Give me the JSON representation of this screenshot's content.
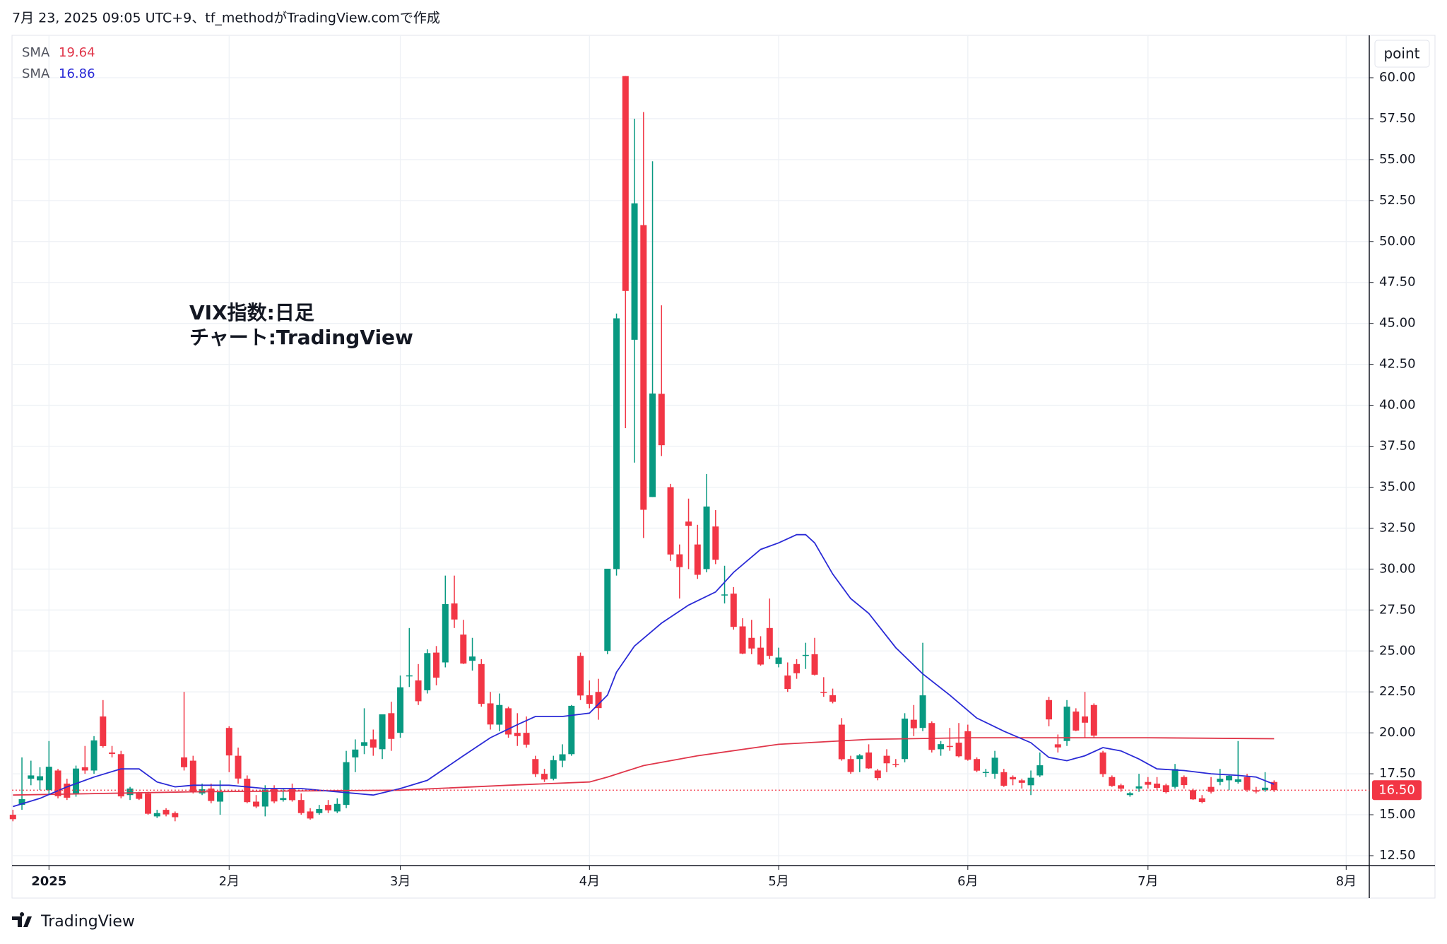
{
  "header": "7月 23, 2025 09:05 UTC+9、tf_methodがTradingView.comで作成",
  "unit_button": "point",
  "footer": "TradingView",
  "chart_data": {
    "type": "candlestick",
    "annotations": [
      "VIX指数:日足",
      "チャート:TradingView"
    ],
    "up_color": "#089981",
    "down_color": "#f23645",
    "ylim": [
      12.5,
      60
    ],
    "yticks": [
      {
        "value": 12.5,
        "label": "12.50"
      },
      {
        "value": 15,
        "label": "15.00"
      },
      {
        "value": 17.5,
        "label": "17.50"
      },
      {
        "value": 20,
        "label": "20.00"
      },
      {
        "value": 22.5,
        "label": "22.50"
      },
      {
        "value": 25,
        "label": "25.00"
      },
      {
        "value": 27.5,
        "label": "27.50"
      },
      {
        "value": 30,
        "label": "30.00"
      },
      {
        "value": 32.5,
        "label": "32.50"
      },
      {
        "value": 35,
        "label": "35.00"
      },
      {
        "value": 37.5,
        "label": "37.50"
      },
      {
        "value": 40,
        "label": "40.00"
      },
      {
        "value": 42.5,
        "label": "42.50"
      },
      {
        "value": 45,
        "label": "45.00"
      },
      {
        "value": 47.5,
        "label": "47.50"
      },
      {
        "value": 50,
        "label": "50.00"
      },
      {
        "value": 52.5,
        "label": "52.50"
      },
      {
        "value": 55,
        "label": "55.00"
      },
      {
        "value": 57.5,
        "label": "57.50"
      },
      {
        "value": 60,
        "label": "60.00"
      }
    ],
    "xticks": [
      {
        "value": 4,
        "label": "2025"
      },
      {
        "value": 24,
        "label": "2月"
      },
      {
        "value": 43,
        "label": "3月"
      },
      {
        "value": 64,
        "label": "4月"
      },
      {
        "value": 85,
        "label": "5月"
      },
      {
        "value": 106,
        "label": "6月"
      },
      {
        "value": 126,
        "label": "7月"
      },
      {
        "value": 148,
        "label": "8月"
      }
    ],
    "grid": true,
    "last_price": {
      "value": 16.5,
      "label": "16.50",
      "color": "#f23645"
    },
    "candles": [
      [
        15.0,
        15.3,
        14.6,
        14.73
      ],
      [
        15.6,
        18.5,
        15.3,
        15.95
      ],
      [
        17.2,
        18.3,
        16.8,
        17.4
      ],
      [
        17.1,
        17.9,
        16.5,
        17.35
      ],
      [
        16.5,
        19.5,
        16.2,
        17.93
      ],
      [
        17.7,
        17.8,
        16.0,
        16.13
      ],
      [
        16.9,
        17.2,
        15.9,
        16.04
      ],
      [
        16.3,
        18.0,
        16.1,
        17.82
      ],
      [
        17.9,
        19.2,
        17.5,
        17.7
      ],
      [
        17.7,
        19.8,
        17.5,
        19.54
      ],
      [
        21.0,
        22.0,
        19.1,
        19.19
      ],
      [
        18.8,
        19.2,
        18.5,
        18.71
      ],
      [
        18.7,
        18.9,
        16.0,
        16.12
      ],
      [
        16.2,
        16.7,
        15.9,
        16.6
      ],
      [
        16.3,
        16.4,
        15.9,
        15.97
      ],
      [
        16.3,
        16.4,
        15.0,
        15.06
      ],
      [
        14.9,
        15.3,
        14.8,
        15.1
      ],
      [
        15.3,
        15.4,
        14.9,
        15.02
      ],
      [
        15.1,
        15.2,
        14.6,
        14.85
      ],
      [
        18.5,
        22.5,
        17.7,
        17.9
      ],
      [
        18.3,
        18.6,
        16.3,
        16.41
      ],
      [
        16.3,
        16.9,
        16.2,
        16.56
      ],
      [
        16.6,
        16.9,
        15.7,
        15.84
      ],
      [
        15.8,
        17.1,
        15.0,
        16.43
      ],
      [
        20.3,
        20.4,
        17.6,
        18.62
      ],
      [
        18.6,
        19.1,
        16.9,
        17.21
      ],
      [
        17.2,
        17.4,
        15.7,
        15.77
      ],
      [
        15.8,
        16.2,
        15.4,
        15.5
      ],
      [
        15.5,
        16.8,
        14.9,
        16.54
      ],
      [
        16.6,
        16.8,
        15.7,
        15.81
      ],
      [
        15.9,
        16.6,
        15.8,
        16.02
      ],
      [
        16.6,
        16.9,
        15.8,
        15.89
      ],
      [
        15.9,
        16.3,
        15.0,
        15.1
      ],
      [
        15.2,
        15.4,
        14.7,
        14.77
      ],
      [
        15.1,
        15.6,
        15.0,
        15.35
      ],
      [
        15.6,
        15.9,
        15.1,
        15.27
      ],
      [
        15.2,
        16.0,
        15.1,
        15.66
      ],
      [
        15.6,
        18.9,
        15.4,
        18.21
      ],
      [
        18.5,
        19.6,
        17.6,
        18.98
      ],
      [
        19.2,
        21.5,
        18.7,
        19.43
      ],
      [
        19.6,
        20.2,
        18.6,
        19.1
      ],
      [
        19.0,
        21.1,
        18.4,
        21.13
      ],
      [
        21.2,
        21.9,
        18.9,
        19.63
      ],
      [
        20.0,
        23.5,
        19.7,
        22.78
      ],
      [
        23.5,
        26.4,
        22.8,
        23.51
      ],
      [
        23.2,
        24.2,
        21.7,
        21.93
      ],
      [
        22.6,
        25.1,
        22.4,
        24.87
      ],
      [
        24.9,
        25.3,
        22.9,
        23.37
      ],
      [
        24.3,
        29.6,
        24.0,
        27.86
      ],
      [
        27.9,
        29.6,
        26.4,
        26.92
      ],
      [
        26.0,
        26.9,
        24.2,
        24.23
      ],
      [
        24.4,
        25.8,
        23.8,
        24.66
      ],
      [
        24.2,
        24.5,
        21.6,
        21.77
      ],
      [
        21.8,
        22.5,
        20.2,
        20.51
      ],
      [
        20.5,
        22.4,
        20.1,
        21.7
      ],
      [
        21.5,
        21.6,
        19.7,
        19.9
      ],
      [
        20.0,
        21.2,
        19.2,
        19.8
      ],
      [
        20.0,
        21.0,
        19.1,
        19.28
      ],
      [
        18.4,
        18.6,
        17.3,
        17.48
      ],
      [
        17.5,
        17.8,
        17.0,
        17.15
      ],
      [
        17.2,
        18.6,
        17.1,
        18.33
      ],
      [
        18.3,
        19.3,
        17.9,
        18.69
      ],
      [
        18.7,
        21.7,
        18.6,
        21.65
      ],
      [
        24.7,
        24.9,
        22.0,
        22.28
      ],
      [
        22.3,
        23.2,
        21.5,
        21.77
      ],
      [
        22.5,
        23.3,
        20.8,
        21.51
      ],
      [
        25.0,
        30.0,
        24.8,
        30.02
      ],
      [
        30.0,
        45.6,
        29.6,
        45.31
      ],
      [
        60.1,
        60.1,
        38.6,
        46.98
      ],
      [
        44.0,
        57.5,
        36.5,
        52.33
      ],
      [
        51.0,
        57.9,
        31.9,
        33.62
      ],
      [
        34.4,
        54.9,
        34.4,
        40.72
      ],
      [
        40.7,
        46.1,
        36.9,
        37.56
      ],
      [
        35.0,
        35.2,
        30.5,
        30.89
      ],
      [
        30.9,
        31.5,
        28.2,
        30.12
      ],
      [
        32.9,
        34.3,
        30.0,
        32.64
      ],
      [
        31.5,
        32.7,
        29.4,
        29.65
      ],
      [
        30.0,
        35.8,
        29.8,
        33.82
      ],
      [
        32.6,
        33.6,
        30.3,
        30.57
      ],
      [
        28.4,
        30.2,
        27.9,
        28.45
      ],
      [
        28.5,
        28.9,
        26.3,
        26.47
      ],
      [
        26.5,
        27.0,
        24.8,
        24.84
      ],
      [
        25.8,
        26.9,
        24.8,
        25.15
      ],
      [
        25.2,
        25.9,
        24.1,
        24.17
      ],
      [
        26.4,
        28.2,
        24.5,
        24.7
      ],
      [
        24.2,
        25.2,
        24.0,
        24.6
      ],
      [
        23.5,
        24.3,
        22.5,
        22.68
      ],
      [
        24.2,
        24.5,
        23.3,
        23.64
      ],
      [
        24.7,
        25.5,
        23.9,
        24.76
      ],
      [
        24.8,
        25.8,
        23.5,
        23.55
      ],
      [
        22.5,
        23.4,
        22.2,
        22.48
      ],
      [
        22.3,
        22.7,
        21.8,
        21.9
      ],
      [
        20.5,
        20.9,
        18.3,
        18.39
      ],
      [
        18.4,
        18.6,
        17.5,
        17.61
      ],
      [
        18.4,
        18.7,
        17.6,
        18.62
      ],
      [
        18.8,
        19.3,
        17.8,
        17.83
      ],
      [
        17.7,
        17.8,
        17.1,
        17.24
      ],
      [
        18.6,
        19.0,
        17.6,
        18.14
      ],
      [
        18.1,
        18.4,
        17.9,
        18.09
      ],
      [
        18.4,
        21.2,
        18.2,
        20.87
      ],
      [
        20.8,
        21.7,
        19.8,
        20.28
      ],
      [
        20.3,
        25.5,
        20.1,
        22.29
      ],
      [
        20.6,
        20.7,
        18.8,
        18.96
      ],
      [
        19.0,
        19.5,
        18.6,
        19.31
      ],
      [
        19.2,
        20.3,
        18.9,
        19.18
      ],
      [
        19.4,
        20.6,
        18.5,
        18.57
      ],
      [
        20.1,
        20.5,
        18.3,
        18.36
      ],
      [
        18.4,
        18.5,
        17.6,
        17.69
      ],
      [
        17.6,
        17.8,
        17.3,
        17.61
      ],
      [
        17.5,
        18.9,
        17.2,
        18.48
      ],
      [
        17.6,
        17.8,
        16.7,
        16.77
      ],
      [
        17.3,
        17.4,
        16.8,
        17.16
      ],
      [
        17.1,
        17.2,
        16.6,
        16.95
      ],
      [
        16.8,
        17.7,
        16.2,
        17.26
      ],
      [
        17.4,
        18.8,
        17.3,
        18.02
      ],
      [
        22.0,
        22.2,
        20.4,
        20.82
      ],
      [
        19.3,
        19.9,
        18.8,
        19.11
      ],
      [
        19.5,
        22.0,
        19.2,
        21.6
      ],
      [
        21.3,
        21.5,
        20.1,
        20.14
      ],
      [
        21.0,
        22.5,
        19.7,
        20.62
      ],
      [
        21.7,
        21.8,
        19.7,
        19.83
      ],
      [
        18.8,
        18.9,
        17.3,
        17.48
      ],
      [
        17.3,
        17.4,
        16.7,
        16.76
      ],
      [
        16.8,
        16.9,
        16.4,
        16.59
      ],
      [
        16.2,
        16.4,
        16.1,
        16.32
      ],
      [
        16.6,
        17.5,
        16.4,
        16.73
      ],
      [
        17.0,
        17.3,
        16.6,
        16.83
      ],
      [
        16.9,
        17.3,
        16.5,
        16.64
      ],
      [
        16.8,
        16.9,
        16.3,
        16.38
      ],
      [
        16.7,
        18.1,
        16.6,
        17.79
      ],
      [
        17.3,
        17.4,
        16.6,
        16.81
      ],
      [
        16.5,
        16.6,
        15.9,
        15.94
      ],
      [
        16.0,
        16.2,
        15.7,
        15.78
      ],
      [
        16.7,
        17.3,
        16.3,
        16.4
      ],
      [
        17.0,
        17.8,
        16.8,
        17.2
      ],
      [
        17.1,
        17.4,
        16.5,
        17.38
      ],
      [
        17.0,
        19.5,
        16.9,
        17.16
      ],
      [
        17.3,
        17.5,
        16.4,
        16.52
      ],
      [
        16.5,
        16.7,
        16.3,
        16.41
      ],
      [
        16.5,
        17.6,
        16.4,
        16.65
      ],
      [
        17.0,
        17.1,
        16.4,
        16.5
      ]
    ],
    "series": [
      {
        "name": "SMA",
        "color": "#e0364a",
        "last_value": 19.64,
        "x": [
          0,
          20,
          43,
          55,
          64,
          66,
          70,
          76,
          85,
          95,
          106,
          115,
          126,
          140
        ],
        "values": [
          16.2,
          16.4,
          16.5,
          16.8,
          17.0,
          17.3,
          18.0,
          18.6,
          19.3,
          19.6,
          19.7,
          19.7,
          19.7,
          19.64
        ]
      },
      {
        "name": "SMA",
        "color": "#2a2ad6",
        "last_value": 16.86,
        "x": [
          0,
          3,
          6,
          9,
          12,
          14,
          16,
          18,
          20,
          24,
          28,
          32,
          36,
          40,
          43,
          46,
          50,
          53,
          56,
          58,
          61,
          64,
          66,
          67,
          69,
          72,
          75,
          78,
          80,
          83,
          85,
          87,
          88,
          89,
          91,
          93,
          95,
          98,
          101,
          104,
          107,
          110,
          113,
          115,
          117,
          119,
          121,
          123,
          125,
          127,
          130,
          133,
          136,
          138,
          140
        ],
        "values": [
          15.5,
          16.0,
          16.7,
          17.3,
          17.8,
          17.8,
          17.0,
          16.7,
          16.8,
          16.8,
          16.6,
          16.6,
          16.4,
          16.2,
          16.6,
          17.1,
          18.6,
          19.7,
          20.5,
          21.0,
          21.0,
          21.2,
          22.3,
          23.7,
          25.3,
          26.7,
          27.8,
          28.6,
          29.8,
          31.2,
          31.6,
          32.1,
          32.1,
          31.6,
          29.7,
          28.2,
          27.3,
          25.2,
          23.6,
          22.3,
          20.9,
          20.1,
          19.4,
          18.5,
          18.3,
          18.6,
          19.1,
          18.9,
          18.4,
          17.8,
          17.7,
          17.5,
          17.4,
          17.3,
          16.86
        ]
      }
    ]
  }
}
